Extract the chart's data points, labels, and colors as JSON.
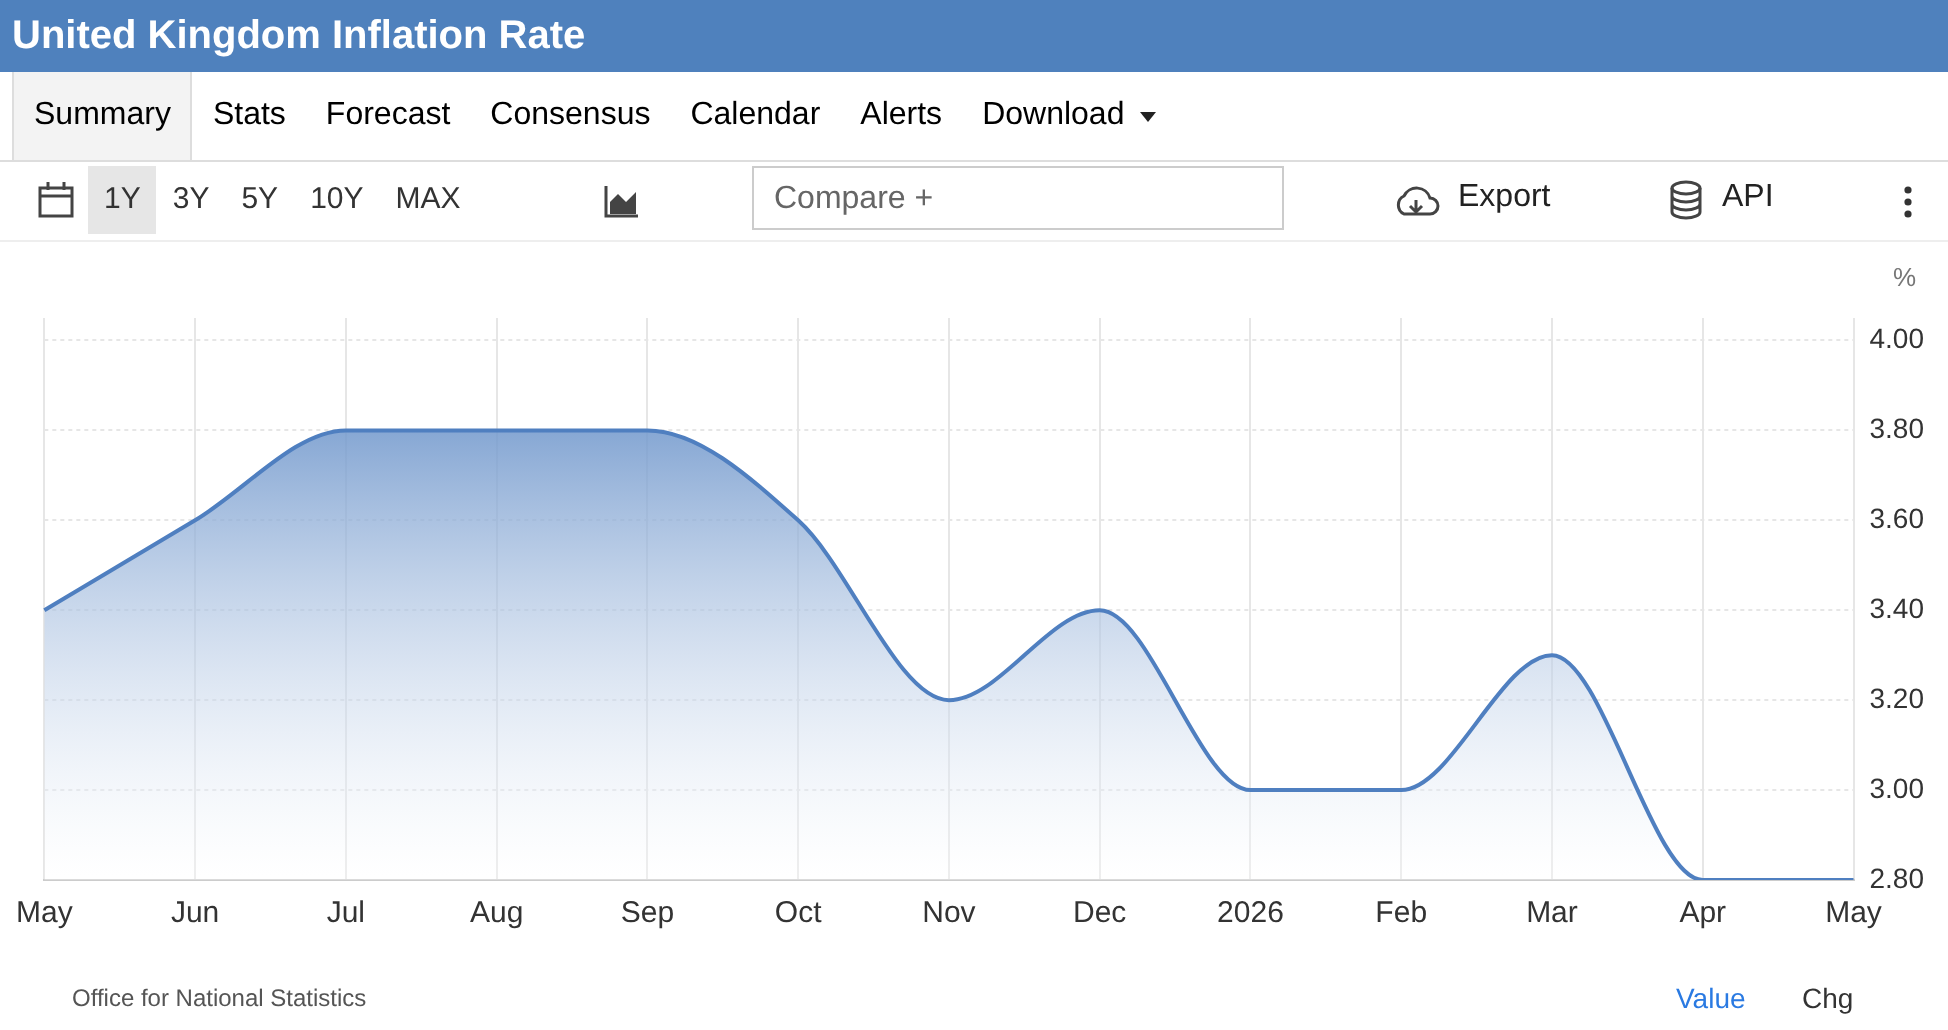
{
  "chart_data": {
    "type": "area",
    "title": "United Kingdom Inflation Rate",
    "ylabel": "%",
    "categories": [
      "May",
      "Jun",
      "Jul",
      "Aug",
      "Sep",
      "Oct",
      "Nov",
      "Dec",
      "2026",
      "Feb",
      "Mar",
      "Apr",
      "May"
    ],
    "series": [
      {
        "color": "#4f7fc0",
        "values": [
          3.4,
          3.6,
          3.8,
          3.8,
          3.8,
          3.6,
          3.2,
          3.4,
          3.0,
          3.0,
          3.3,
          2.8,
          2.8
        ]
      }
    ],
    "ylim": [
      2.8,
      4.05
    ],
    "yticks": [
      {
        "value": 2.8,
        "label": "2.80"
      },
      {
        "value": 3.0,
        "label": "3.00"
      },
      {
        "value": 3.2,
        "label": "3.20"
      },
      {
        "value": 3.4,
        "label": "3.40"
      },
      {
        "value": 3.6,
        "label": "3.60"
      },
      {
        "value": 3.8,
        "label": "3.80"
      },
      {
        "value": 4.0,
        "label": "4.00"
      }
    ],
    "grid": true,
    "annotations": [
      "Summary",
      "Stats",
      "Forecast",
      "Consensus",
      "Calendar",
      "Alerts",
      "Download",
      "1Y",
      "3Y",
      "5Y",
      "10Y",
      "MAX",
      "Compare +",
      "Export",
      "API",
      "Office for National Statistics",
      "Value",
      "Chg"
    ]
  }
}
